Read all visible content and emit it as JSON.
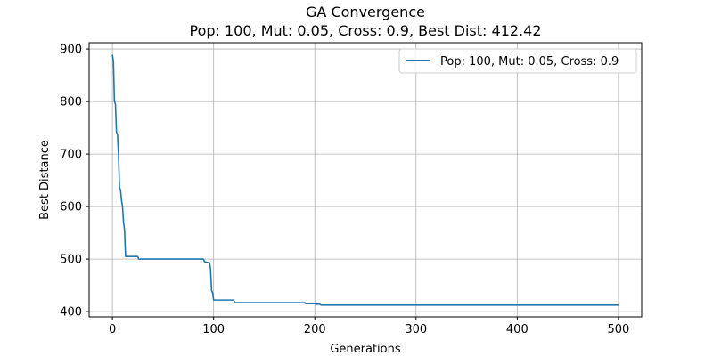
{
  "chart_data": {
    "type": "line",
    "title": "GA Convergence",
    "subtitle": "Pop: 100, Mut: 0.05, Cross: 0.9, Best Dist: 412.42",
    "xlabel": "Generations",
    "ylabel": "Best Distance",
    "xlim": [
      -23,
      523
    ],
    "ylim": [
      390,
      912
    ],
    "xticks": [
      0,
      100,
      200,
      300,
      400,
      500
    ],
    "yticks": [
      400,
      500,
      600,
      700,
      800,
      900
    ],
    "grid": true,
    "legend_position": "top-right",
    "series": [
      {
        "name": "Pop: 100, Mut: 0.05, Cross: 0.9",
        "color": "#1f77b4",
        "x": [
          0,
          1,
          2,
          3,
          4,
          5,
          6,
          7,
          8,
          9,
          10,
          11,
          12,
          13,
          14,
          15,
          25,
          26,
          90,
          91,
          96,
          97,
          98,
          99,
          100,
          101,
          120,
          121,
          190,
          191,
          200,
          201,
          205,
          206,
          500
        ],
        "y": [
          889,
          877,
          800,
          795,
          742,
          738,
          700,
          636,
          632,
          612,
          600,
          570,
          556,
          505,
          505,
          505,
          505,
          500,
          500,
          495,
          493,
          480,
          440,
          436,
          422,
          422,
          422,
          417,
          417,
          415,
          415,
          414,
          414,
          412.42,
          412.42
        ]
      }
    ]
  }
}
